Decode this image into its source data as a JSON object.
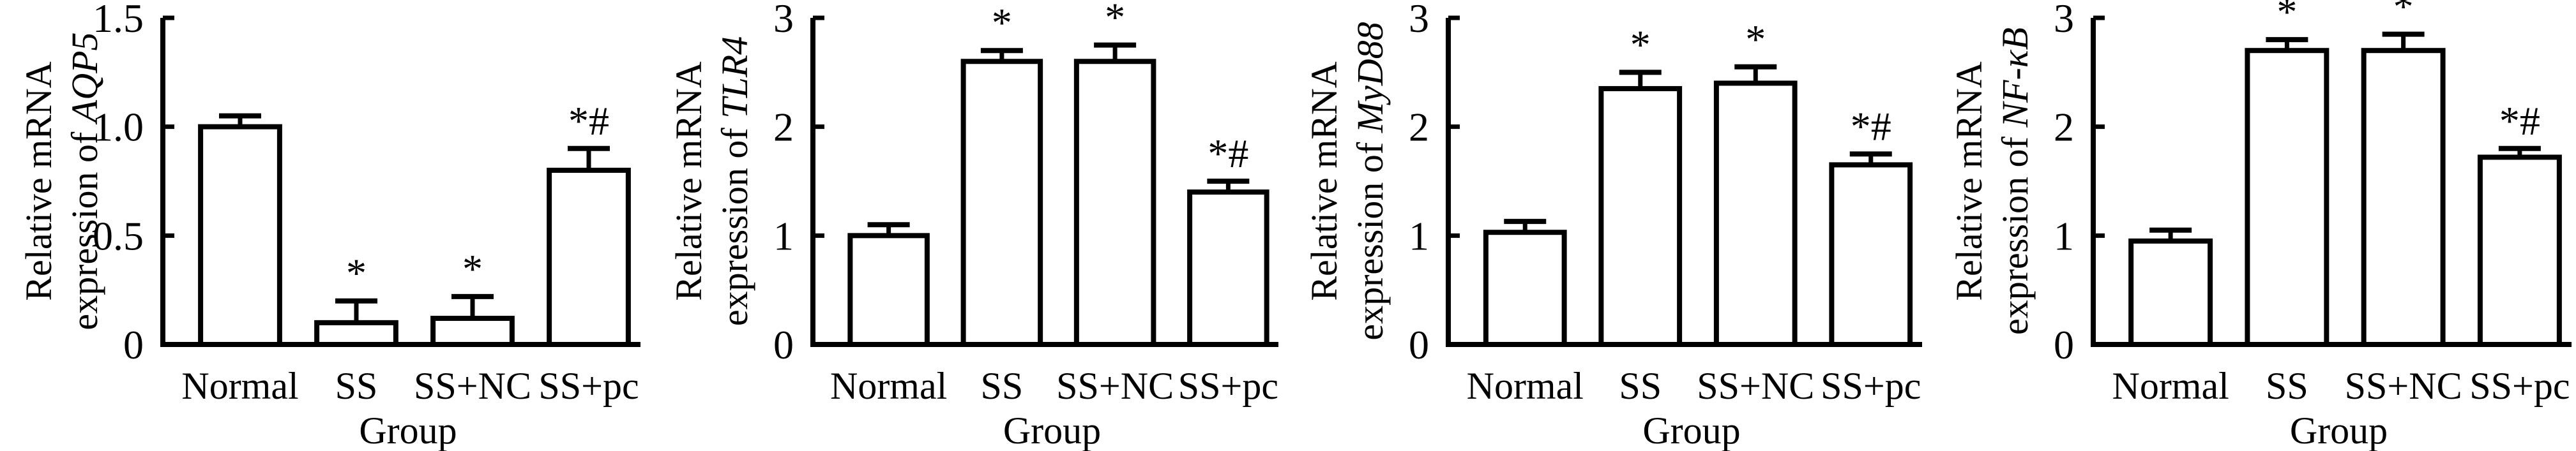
{
  "chart_data": [
    {
      "type": "bar",
      "title": "",
      "ylabel_line1": "Relative mRNA",
      "ylabel_prefix": "expression of ",
      "gene": "AQP5",
      "xlabel": "Group",
      "categories": [
        "Normal",
        "SS",
        "SS+NC",
        "SS+pc"
      ],
      "values": [
        1.0,
        0.1,
        0.12,
        0.8
      ],
      "errors": [
        0.05,
        0.1,
        0.1,
        0.1
      ],
      "annotations": [
        "",
        "*",
        "*",
        "*#"
      ],
      "ylim": [
        0,
        1.5
      ],
      "yticks": [
        0,
        0.5,
        1.0,
        1.5
      ],
      "ytick_labels": [
        "0",
        "0.5",
        "1.0",
        "1.5"
      ]
    },
    {
      "type": "bar",
      "title": "",
      "ylabel_line1": "Relative mRNA",
      "ylabel_prefix": "expression of ",
      "gene": "TLR4",
      "xlabel": "Group",
      "categories": [
        "Normal",
        "SS",
        "SS+NC",
        "SS+pc"
      ],
      "values": [
        1.0,
        2.6,
        2.6,
        1.4
      ],
      "errors": [
        0.1,
        0.1,
        0.15,
        0.1
      ],
      "annotations": [
        "",
        "*",
        "*",
        "*#"
      ],
      "ylim": [
        0,
        3
      ],
      "yticks": [
        0,
        1,
        2,
        3
      ],
      "ytick_labels": [
        "0",
        "1",
        "2",
        "3"
      ]
    },
    {
      "type": "bar",
      "title": "",
      "ylabel_line1": "Relative mRNA",
      "ylabel_prefix": "expression of ",
      "gene": "MyD88",
      "xlabel": "Group",
      "categories": [
        "Normal",
        "SS",
        "SS+NC",
        "SS+pc"
      ],
      "values": [
        1.03,
        2.35,
        2.4,
        1.65
      ],
      "errors": [
        0.1,
        0.15,
        0.15,
        0.1
      ],
      "annotations": [
        "",
        "*",
        "*",
        "*#"
      ],
      "ylim": [
        0,
        3
      ],
      "yticks": [
        0,
        1,
        2,
        3
      ],
      "ytick_labels": [
        "0",
        "1",
        "2",
        "3"
      ]
    },
    {
      "type": "bar",
      "title": "",
      "ylabel_line1": "Relative mRNA",
      "ylabel_prefix": "expression of ",
      "gene": "NF-κB",
      "xlabel": "Group",
      "categories": [
        "Normal",
        "SS",
        "SS+NC",
        "SS+pc"
      ],
      "values": [
        0.95,
        2.7,
        2.7,
        1.72
      ],
      "errors": [
        0.1,
        0.1,
        0.15,
        0.08
      ],
      "annotations": [
        "",
        "*",
        "*",
        "*#"
      ],
      "ylim": [
        0,
        3
      ],
      "yticks": [
        0,
        1,
        2,
        3
      ],
      "ytick_labels": [
        "0",
        "1",
        "2",
        "3"
      ]
    }
  ]
}
